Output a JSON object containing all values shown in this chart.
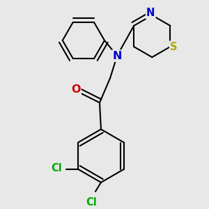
{
  "background_color": "#e8e8e8",
  "atom_colors": {
    "C": "#000000",
    "N": "#0000cc",
    "O": "#cc0000",
    "S": "#aaaa00",
    "Cl": "#00aa00"
  },
  "bond_color": "#000000",
  "bond_width": 1.5,
  "font_size_atoms": 10.5
}
